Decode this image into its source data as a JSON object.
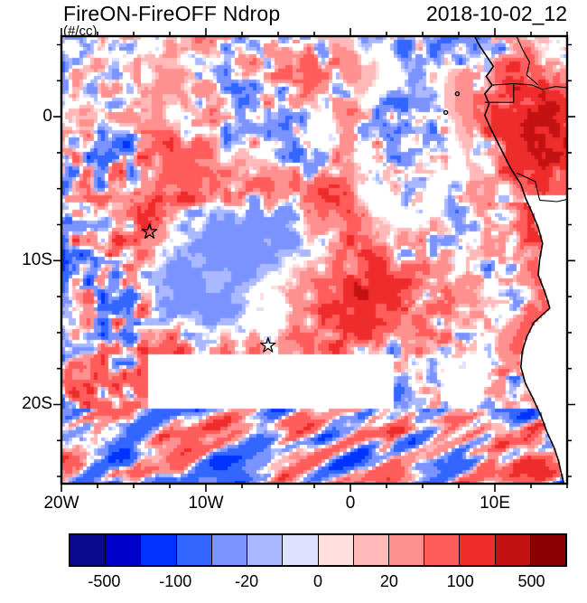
{
  "chart_data": {
    "type": "heatmap",
    "title": "FireON-FireOFF Ndrop",
    "units": "(#/cc)",
    "timestamp": "2018-10-02_12",
    "lon_range": [
      -20,
      15
    ],
    "lat_range": [
      -25.5,
      5.6
    ],
    "land_data_cut": -5.5,
    "axes": {
      "minor_step": 2.5,
      "x_ticks": [
        {
          "label": "20W",
          "lon": -20
        },
        {
          "label": "10W",
          "lon": -10
        },
        {
          "label": "0",
          "lon": 0
        },
        {
          "label": "10E",
          "lon": 10
        }
      ],
      "y_ticks": [
        {
          "label": "0",
          "lat": 0
        },
        {
          "label": "10S",
          "lat": -10
        },
        {
          "label": "20S",
          "lat": -20
        }
      ]
    },
    "colorbar": {
      "levels": [
        -500,
        -200,
        -100,
        -50,
        -20,
        -10,
        0,
        10,
        20,
        50,
        100,
        200,
        500
      ],
      "colors": [
        "#0a0a8c",
        "#0000cd",
        "#0033ff",
        "#3366ff",
        "#7a93ff",
        "#aab9ff",
        "#dce2ff",
        "#ffdede",
        "#ffb9b9",
        "#ff9090",
        "#ff5c5c",
        "#ee2c2c",
        "#c41212",
        "#8b0000"
      ],
      "tick_labels": [
        {
          "value": -500,
          "label": "-500"
        },
        {
          "value": -100,
          "label": "-100"
        },
        {
          "value": -20,
          "label": "-20"
        },
        {
          "value": 0,
          "label": "0"
        },
        {
          "value": 20,
          "label": "20"
        },
        {
          "value": 100,
          "label": "100"
        },
        {
          "value": 500,
          "label": "500"
        }
      ]
    },
    "markers": [
      {
        "type": "star",
        "lon": -13.9,
        "lat": -8.0
      },
      {
        "type": "star",
        "lon": -5.7,
        "lat": -15.9
      }
    ],
    "islands": [
      [
        7.4,
        1.6
      ],
      [
        6.6,
        0.3
      ]
    ],
    "coastline": [
      [
        8.6,
        5.6
      ],
      [
        8.9,
        5.0
      ],
      [
        9.5,
        4.1
      ],
      [
        9.9,
        3.5
      ],
      [
        9.4,
        2.8
      ],
      [
        9.8,
        2.2
      ],
      [
        9.3,
        1.6
      ],
      [
        9.6,
        0.9
      ],
      [
        9.3,
        0.1
      ],
      [
        9.7,
        -0.8
      ],
      [
        10.4,
        -2.2
      ],
      [
        11.1,
        -3.6
      ],
      [
        11.8,
        -4.7
      ],
      [
        12.1,
        -5.6
      ],
      [
        12.5,
        -6.5
      ],
      [
        13.0,
        -7.7
      ],
      [
        13.3,
        -8.8
      ],
      [
        13.1,
        -9.9
      ],
      [
        13.0,
        -11.0
      ],
      [
        13.5,
        -12.3
      ],
      [
        13.8,
        -13.3
      ],
      [
        12.7,
        -14.3
      ],
      [
        12.2,
        -15.3
      ],
      [
        11.9,
        -16.3
      ],
      [
        11.8,
        -17.4
      ],
      [
        12.1,
        -18.5
      ],
      [
        12.6,
        -19.5
      ],
      [
        13.2,
        -20.8
      ],
      [
        13.6,
        -21.9
      ],
      [
        14.1,
        -23.0
      ],
      [
        14.4,
        -23.9
      ],
      [
        14.6,
        -24.8
      ],
      [
        14.8,
        -25.6
      ]
    ],
    "borders": [
      [
        [
          9.8,
          2.2
        ],
        [
          11.3,
          2.3
        ],
        [
          12.6,
          2.2
        ],
        [
          13.3,
          1.9
        ],
        [
          14.2,
          2.1
        ],
        [
          15.2,
          2.0
        ]
      ],
      [
        [
          9.3,
          1.0
        ],
        [
          11.3,
          1.0
        ],
        [
          11.3,
          2.3
        ]
      ],
      [
        [
          11.5,
          -3.9
        ],
        [
          12.8,
          -4.5
        ],
        [
          13.1,
          -5.8
        ],
        [
          14.3,
          -5.9
        ],
        [
          15.2,
          -5.7
        ]
      ],
      [
        [
          11.5,
          5.6
        ],
        [
          11.9,
          4.7
        ],
        [
          12.4,
          3.8
        ],
        [
          12.2,
          2.9
        ],
        [
          13.0,
          2.2
        ]
      ]
    ],
    "field_regions": [
      {
        "name": "central-negative-blob",
        "type": "smooth_blob",
        "center": [
          -7.5,
          -11
        ],
        "radii": [
          6.8,
          5.0
        ],
        "base": -30,
        "variation": 26
      },
      {
        "name": "ring-positive",
        "type": "ring",
        "center": [
          -7.5,
          -11
        ],
        "radii": [
          6.8,
          5.0
        ],
        "amplitude": 65
      },
      {
        "name": "east-red-zone",
        "type": "gaussian",
        "center": [
          0.5,
          -13
        ],
        "radii": [
          5.5,
          3.2
        ],
        "amplitude": 110
      },
      {
        "name": "coastal-red",
        "type": "coast_band",
        "lat_range": [
          -18,
          -6
        ],
        "width": 2.2,
        "amplitude": 110
      },
      {
        "name": "ne-dark-red-1",
        "type": "gaussian",
        "center": [
          13.5,
          -2
        ],
        "radii": [
          3.2,
          3.2
        ],
        "amplitude": 240
      },
      {
        "name": "ne-dark-red-2",
        "type": "gaussian",
        "center": [
          11,
          1.5
        ],
        "radii": [
          3.0,
          2.2
        ],
        "amplitude": 120
      },
      {
        "name": "top-center-red",
        "type": "gaussian",
        "center": [
          -2.5,
          3.2
        ],
        "radii": [
          3.0,
          1.9
        ],
        "amplitude": 85
      },
      {
        "name": "mid-left-red",
        "type": "gaussian",
        "center": [
          -13,
          -3.5
        ],
        "radii": [
          3.4,
          2.2
        ],
        "amplitude": 70
      },
      {
        "name": "west-speckle",
        "type": "speckle_boost",
        "lon_range": [
          -20,
          -14.5
        ],
        "lat_range": [
          -25.5,
          5.6
        ],
        "amplitude": 70
      },
      {
        "name": "south-white-band",
        "type": "damp_box",
        "lon_range": [
          -14,
          3
        ],
        "lat_range": [
          -20.5,
          -16.5
        ],
        "factor": 0.06
      },
      {
        "name": "nw-white-area",
        "type": "damp_box",
        "lon_range": [
          -20,
          -11
        ],
        "lat_range": [
          -1,
          5.6
        ],
        "factor": 0.45
      },
      {
        "name": "south-streaks",
        "type": "streaks",
        "lat_range": [
          -25.5,
          -20.3
        ],
        "amplitude": 120
      }
    ],
    "field_description": [
      "Difference field FireON minus FireOFF cloud droplet number concentration over the SE Atlantic",
      "Pale blue (negative) pool centered near 7.5W 11S surrounded by red (positive) speckle",
      "Strong red along the Angolan coast and dark red over land in the northeast corner",
      "White band of near-zero difference near 17S-20S and mixed red/blue streaks south of 20S"
    ]
  }
}
